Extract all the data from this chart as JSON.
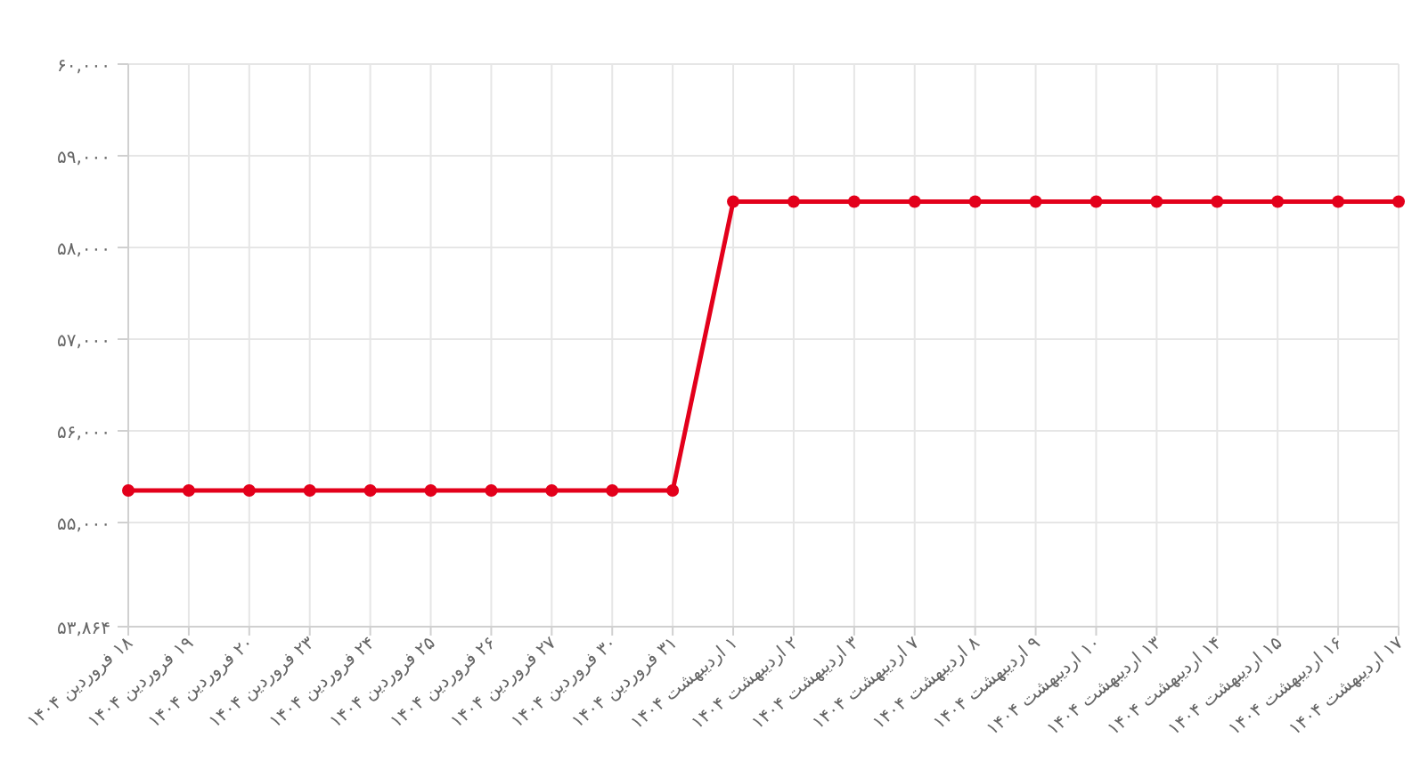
{
  "chart_data": {
    "type": "line",
    "categories": [
      "۱۸ فروردین ۱۴۰۴",
      "۱۹ فروردین ۱۴۰۴",
      "۲۰ فروردین ۱۴۰۴",
      "۲۳ فروردین ۱۴۰۴",
      "۲۴ فروردین ۱۴۰۴",
      "۲۵ فروردین ۱۴۰۴",
      "۲۶ فروردین ۱۴۰۴",
      "۲۷ فروردین ۱۴۰۴",
      "۳۰ فروردین ۱۴۰۴",
      "۳۱ فروردین ۱۴۰۴",
      "۱ اردیبهشت ۱۴۰۴",
      "۲ اردیبهشت ۱۴۰۴",
      "۳ اردیبهشت ۱۴۰۴",
      "۷ اردیبهشت ۱۴۰۴",
      "۸ اردیبهشت ۱۴۰۴",
      "۹ اردیبهشت ۱۴۰۴",
      "۱۰ اردیبهشت ۱۴۰۴",
      "۱۳ اردیبهشت ۱۴۰۴",
      "۱۴ اردیبهشت ۱۴۰۴",
      "۱۵ اردیبهشت ۱۴۰۴",
      "۱۶ اردیبهشت ۱۴۰۴",
      "۱۷ اردیبهشت ۱۴۰۴"
    ],
    "series": [
      {
        "color": "#e3001b",
        "values": [
          55350,
          55350,
          55350,
          55350,
          55350,
          55350,
          55350,
          55350,
          55350,
          55350,
          58500,
          58500,
          58500,
          58500,
          58500,
          58500,
          58500,
          58500,
          58500,
          58500,
          58500,
          58500
        ]
      }
    ],
    "ylim": [
      53864,
      60000
    ],
    "yticks": [
      {
        "value": 53864,
        "label": "۵۳,۸۶۴"
      },
      {
        "value": 55000,
        "label": "۵۵,۰۰۰"
      },
      {
        "value": 56000,
        "label": "۵۶,۰۰۰"
      },
      {
        "value": 57000,
        "label": "۵۷,۰۰۰"
      },
      {
        "value": 58000,
        "label": "۵۸,۰۰۰"
      },
      {
        "value": 59000,
        "label": "۵۹,۰۰۰"
      },
      {
        "value": 60000,
        "label": "۶۰,۰۰۰"
      }
    ],
    "grid": true,
    "marker": "circle",
    "line_style": "solid"
  }
}
